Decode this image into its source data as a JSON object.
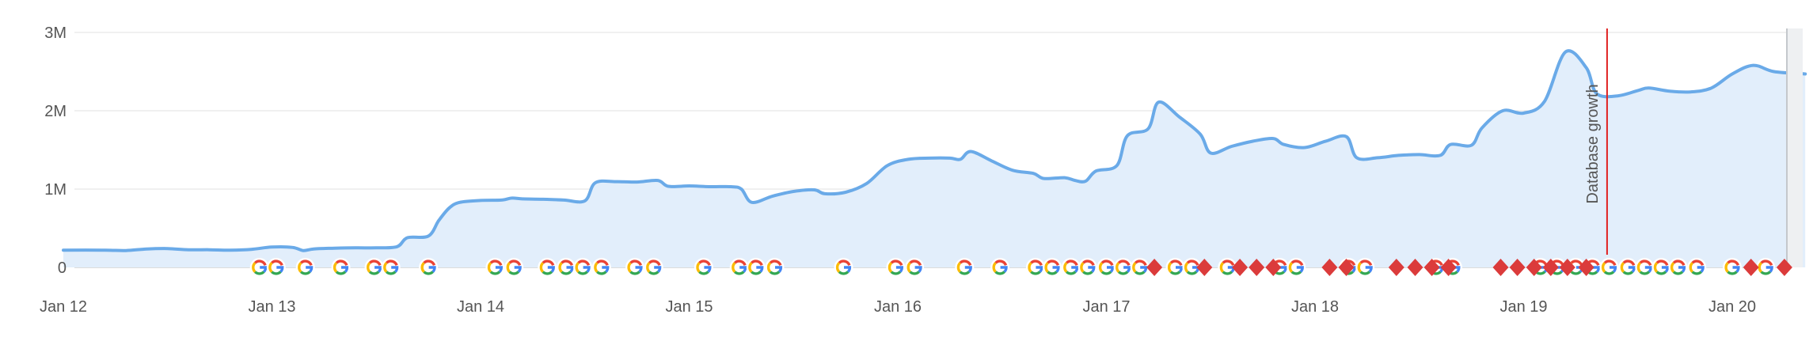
{
  "chart_data": {
    "type": "area",
    "title": "",
    "xlabel": "",
    "ylabel": "",
    "x_ticks": [
      "Jan 12",
      "Jan 13",
      "Jan 14",
      "Jan 15",
      "Jan 16",
      "Jan 17",
      "Jan 18",
      "Jan 19",
      "Jan 20"
    ],
    "y_ticks": [
      {
        "value": 0,
        "label": "0"
      },
      {
        "value": 1000000,
        "label": "1M"
      },
      {
        "value": 2000000,
        "label": "2M"
      },
      {
        "value": 3000000,
        "label": "3M"
      }
    ],
    "xlim": [
      11.96,
      20.25
    ],
    "ylim": [
      0,
      3000000
    ],
    "grid": true,
    "colors": {
      "line": "#6aaae8",
      "area": "#e2eefb",
      "grid": "#e0e0e0",
      "annotation": "#e02020",
      "diamond": "#db3b3b",
      "google_blue": "#4285F4",
      "google_red": "#EA4335",
      "google_yellow": "#FBBC05",
      "google_green": "#34A853"
    },
    "series": [
      {
        "points": [
          [
            12.0,
            220000
          ],
          [
            12.2,
            220000
          ],
          [
            12.3,
            215000
          ],
          [
            12.4,
            235000
          ],
          [
            12.5,
            240000
          ],
          [
            12.6,
            225000
          ],
          [
            12.7,
            225000
          ],
          [
            12.8,
            220000
          ],
          [
            12.9,
            230000
          ],
          [
            13.0,
            260000
          ],
          [
            13.1,
            255000
          ],
          [
            13.15,
            215000
          ],
          [
            13.2,
            235000
          ],
          [
            13.3,
            245000
          ],
          [
            13.4,
            250000
          ],
          [
            13.5,
            250000
          ],
          [
            13.6,
            265000
          ],
          [
            13.65,
            380000
          ],
          [
            13.75,
            400000
          ],
          [
            13.8,
            600000
          ],
          [
            13.85,
            760000
          ],
          [
            13.9,
            830000
          ],
          [
            14.0,
            855000
          ],
          [
            14.1,
            860000
          ],
          [
            14.15,
            885000
          ],
          [
            14.2,
            875000
          ],
          [
            14.3,
            870000
          ],
          [
            14.4,
            860000
          ],
          [
            14.5,
            850000
          ],
          [
            14.55,
            1080000
          ],
          [
            14.65,
            1095000
          ],
          [
            14.75,
            1090000
          ],
          [
            14.85,
            1110000
          ],
          [
            14.9,
            1035000
          ],
          [
            15.0,
            1040000
          ],
          [
            15.1,
            1030000
          ],
          [
            15.2,
            1030000
          ],
          [
            15.25,
            1000000
          ],
          [
            15.3,
            830000
          ],
          [
            15.4,
            910000
          ],
          [
            15.5,
            970000
          ],
          [
            15.6,
            990000
          ],
          [
            15.65,
            940000
          ],
          [
            15.75,
            960000
          ],
          [
            15.85,
            1070000
          ],
          [
            15.95,
            1300000
          ],
          [
            16.05,
            1380000
          ],
          [
            16.15,
            1395000
          ],
          [
            16.25,
            1395000
          ],
          [
            16.3,
            1380000
          ],
          [
            16.35,
            1480000
          ],
          [
            16.45,
            1360000
          ],
          [
            16.55,
            1240000
          ],
          [
            16.65,
            1200000
          ],
          [
            16.7,
            1135000
          ],
          [
            16.8,
            1145000
          ],
          [
            16.85,
            1110000
          ],
          [
            16.9,
            1100000
          ],
          [
            16.95,
            1230000
          ],
          [
            17.05,
            1300000
          ],
          [
            17.1,
            1680000
          ],
          [
            17.2,
            1770000
          ],
          [
            17.25,
            2110000
          ],
          [
            17.35,
            1920000
          ],
          [
            17.45,
            1700000
          ],
          [
            17.5,
            1460000
          ],
          [
            17.6,
            1545000
          ],
          [
            17.7,
            1610000
          ],
          [
            17.8,
            1645000
          ],
          [
            17.85,
            1570000
          ],
          [
            17.95,
            1530000
          ],
          [
            18.05,
            1610000
          ],
          [
            18.15,
            1670000
          ],
          [
            18.2,
            1400000
          ],
          [
            18.3,
            1400000
          ],
          [
            18.4,
            1430000
          ],
          [
            18.5,
            1440000
          ],
          [
            18.6,
            1430000
          ],
          [
            18.65,
            1570000
          ],
          [
            18.75,
            1560000
          ],
          [
            18.8,
            1780000
          ],
          [
            18.9,
            2000000
          ],
          [
            19.0,
            1970000
          ],
          [
            19.1,
            2120000
          ],
          [
            19.2,
            2750000
          ],
          [
            19.3,
            2550000
          ],
          [
            19.35,
            2220000
          ],
          [
            19.45,
            2190000
          ],
          [
            19.55,
            2260000
          ],
          [
            19.6,
            2290000
          ],
          [
            19.7,
            2250000
          ],
          [
            19.8,
            2240000
          ],
          [
            19.9,
            2290000
          ],
          [
            20.0,
            2470000
          ],
          [
            20.1,
            2580000
          ],
          [
            20.2,
            2500000
          ],
          [
            20.35,
            2470000
          ]
        ]
      }
    ],
    "annotations": [
      {
        "x": 19.4,
        "label": "Database growth"
      }
    ],
    "google_markers": [
      12.94,
      13.02,
      13.16,
      13.33,
      13.49,
      13.57,
      13.75,
      14.07,
      14.16,
      14.32,
      14.41,
      14.49,
      14.58,
      14.74,
      14.83,
      15.07,
      15.24,
      15.32,
      15.41,
      15.74,
      15.99,
      16.08,
      16.32,
      16.49,
      16.66,
      16.74,
      16.83,
      16.91,
      17.0,
      17.08,
      17.16,
      17.33,
      17.41,
      17.58,
      17.83,
      17.91,
      18.16,
      18.24,
      18.58,
      18.66,
      19.08,
      19.16,
      19.25,
      19.33,
      19.41,
      19.5,
      19.58,
      19.66,
      19.74,
      19.83,
      20.0,
      20.16
    ],
    "diamond_markers": [
      17.23,
      17.47,
      17.64,
      17.72,
      17.8,
      18.07,
      18.15,
      18.39,
      18.48,
      18.56,
      18.64,
      18.89,
      18.97,
      19.05,
      19.13,
      19.21,
      19.3,
      20.09,
      20.25
    ]
  }
}
